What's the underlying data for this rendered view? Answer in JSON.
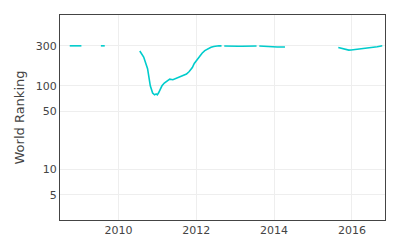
{
  "chart_data": {
    "type": "line",
    "ylabel": "World Ranking",
    "color": "#00cccc",
    "log": "y",
    "grid": true,
    "xlim": [
      2008.5,
      2016.85
    ],
    "xticks": [
      2010,
      2012,
      2014,
      2016
    ],
    "ylim": [
      2.5,
      700
    ],
    "yticks": [
      5,
      10,
      50,
      100,
      300
    ],
    "x": [
      2008.75,
      2008.95,
      2009.05,
      null,
      2009.55,
      2009.65,
      null,
      2010.55,
      2010.65,
      2010.75,
      2010.82,
      2010.88,
      2010.93,
      2010.97,
      2011.0,
      2011.03,
      2011.07,
      2011.12,
      2011.18,
      2011.25,
      2011.32,
      2011.4,
      2011.48,
      2011.55,
      2011.62,
      2011.68,
      2011.75,
      2011.82,
      2011.9,
      2011.95,
      2012.02,
      2012.08,
      2012.15,
      2012.22,
      2012.3,
      2012.38,
      2012.45,
      2012.52,
      2012.58,
      2012.65,
      null,
      2012.72,
      2012.82,
      2012.92,
      2013.0,
      2013.08,
      2013.18,
      2013.28,
      2013.38,
      2013.48,
      2013.55,
      null,
      2013.62,
      2013.72,
      2013.82,
      2013.92,
      2014.0,
      2014.08,
      2014.18,
      2014.28,
      null,
      2015.65,
      2015.72,
      2015.78,
      2015.85,
      2015.92,
      2015.98,
      2016.05,
      2016.12,
      2016.18,
      2016.25,
      2016.32,
      2016.38,
      2016.45,
      2016.52,
      2016.58,
      2016.65,
      2016.72,
      2016.78
    ],
    "values": [
      300,
      300,
      300,
      null,
      300,
      300,
      null,
      260,
      220,
      160,
      100,
      82,
      78,
      80,
      78,
      82,
      90,
      100,
      108,
      115,
      120,
      118,
      122,
      125,
      130,
      132,
      138,
      148,
      165,
      185,
      205,
      225,
      245,
      263,
      278,
      288,
      295,
      300,
      300,
      300,
      null,
      298,
      296,
      295,
      296,
      296,
      297,
      297,
      295,
      295,
      298,
      null,
      298,
      295,
      293,
      292,
      292,
      290,
      290,
      290,
      null,
      287,
      282,
      275,
      270,
      267,
      268,
      270,
      272,
      274,
      278,
      280,
      282,
      284,
      287,
      290,
      293,
      297,
      300
    ]
  }
}
